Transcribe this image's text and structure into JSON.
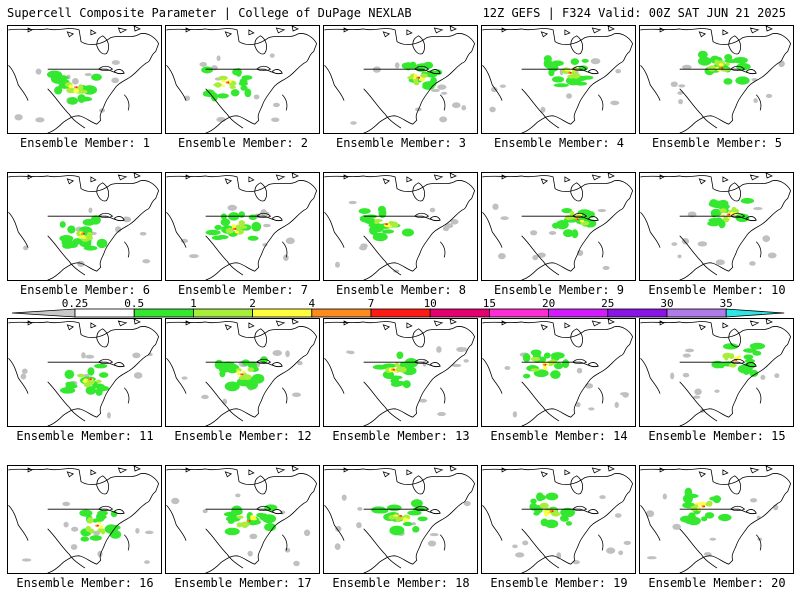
{
  "header": {
    "left": "Supercell Composite Parameter | College of DuPage NEXLAB",
    "right": "12Z GEFS | F324 Valid: 00Z SAT JUN 21 2025"
  },
  "member_prefix": "Ensemble Member: ",
  "members": [
    {
      "label": "Ensemble Member: 1"
    },
    {
      "label": "Ensemble Member: 2"
    },
    {
      "label": "Ensemble Member: 3"
    },
    {
      "label": "Ensemble Member: 4"
    },
    {
      "label": "Ensemble Member: 5"
    },
    {
      "label": "Ensemble Member: 6"
    },
    {
      "label": "Ensemble Member: 7"
    },
    {
      "label": "Ensemble Member: 8"
    },
    {
      "label": "Ensemble Member: 9"
    },
    {
      "label": "Ensemble Member: 10"
    },
    {
      "label": "Ensemble Member: 11"
    },
    {
      "label": "Ensemble Member: 12"
    },
    {
      "label": "Ensemble Member: 13"
    },
    {
      "label": "Ensemble Member: 14"
    },
    {
      "label": "Ensemble Member: 15"
    },
    {
      "label": "Ensemble Member: 16"
    },
    {
      "label": "Ensemble Member: 17"
    },
    {
      "label": "Ensemble Member: 18"
    },
    {
      "label": "Ensemble Member: 19"
    },
    {
      "label": "Ensemble Member: 20"
    }
  ],
  "colorbar": {
    "ticks": [
      "0.25",
      "0.5",
      "1",
      "2",
      "4",
      "7",
      "10",
      "15",
      "20",
      "25",
      "30",
      "35"
    ],
    "colors": [
      "#ffffff",
      "#33e82f",
      "#a6ee3a",
      "#ffff3c",
      "#ff8a1e",
      "#ff1a14",
      "#e6006e",
      "#ff2bd4",
      "#d21cff",
      "#8a14e6",
      "#b07ae8",
      "#2ee6e6"
    ],
    "below_color": "#c8c8c8"
  },
  "map_colors": {
    "land_line": "#000000",
    "grey": "#c0c0c0",
    "green": "#33e82f",
    "lime": "#a6ee3a",
    "yellow": "#ffff3c",
    "orange": "#ff8a1e",
    "red": "#ff1a14"
  }
}
